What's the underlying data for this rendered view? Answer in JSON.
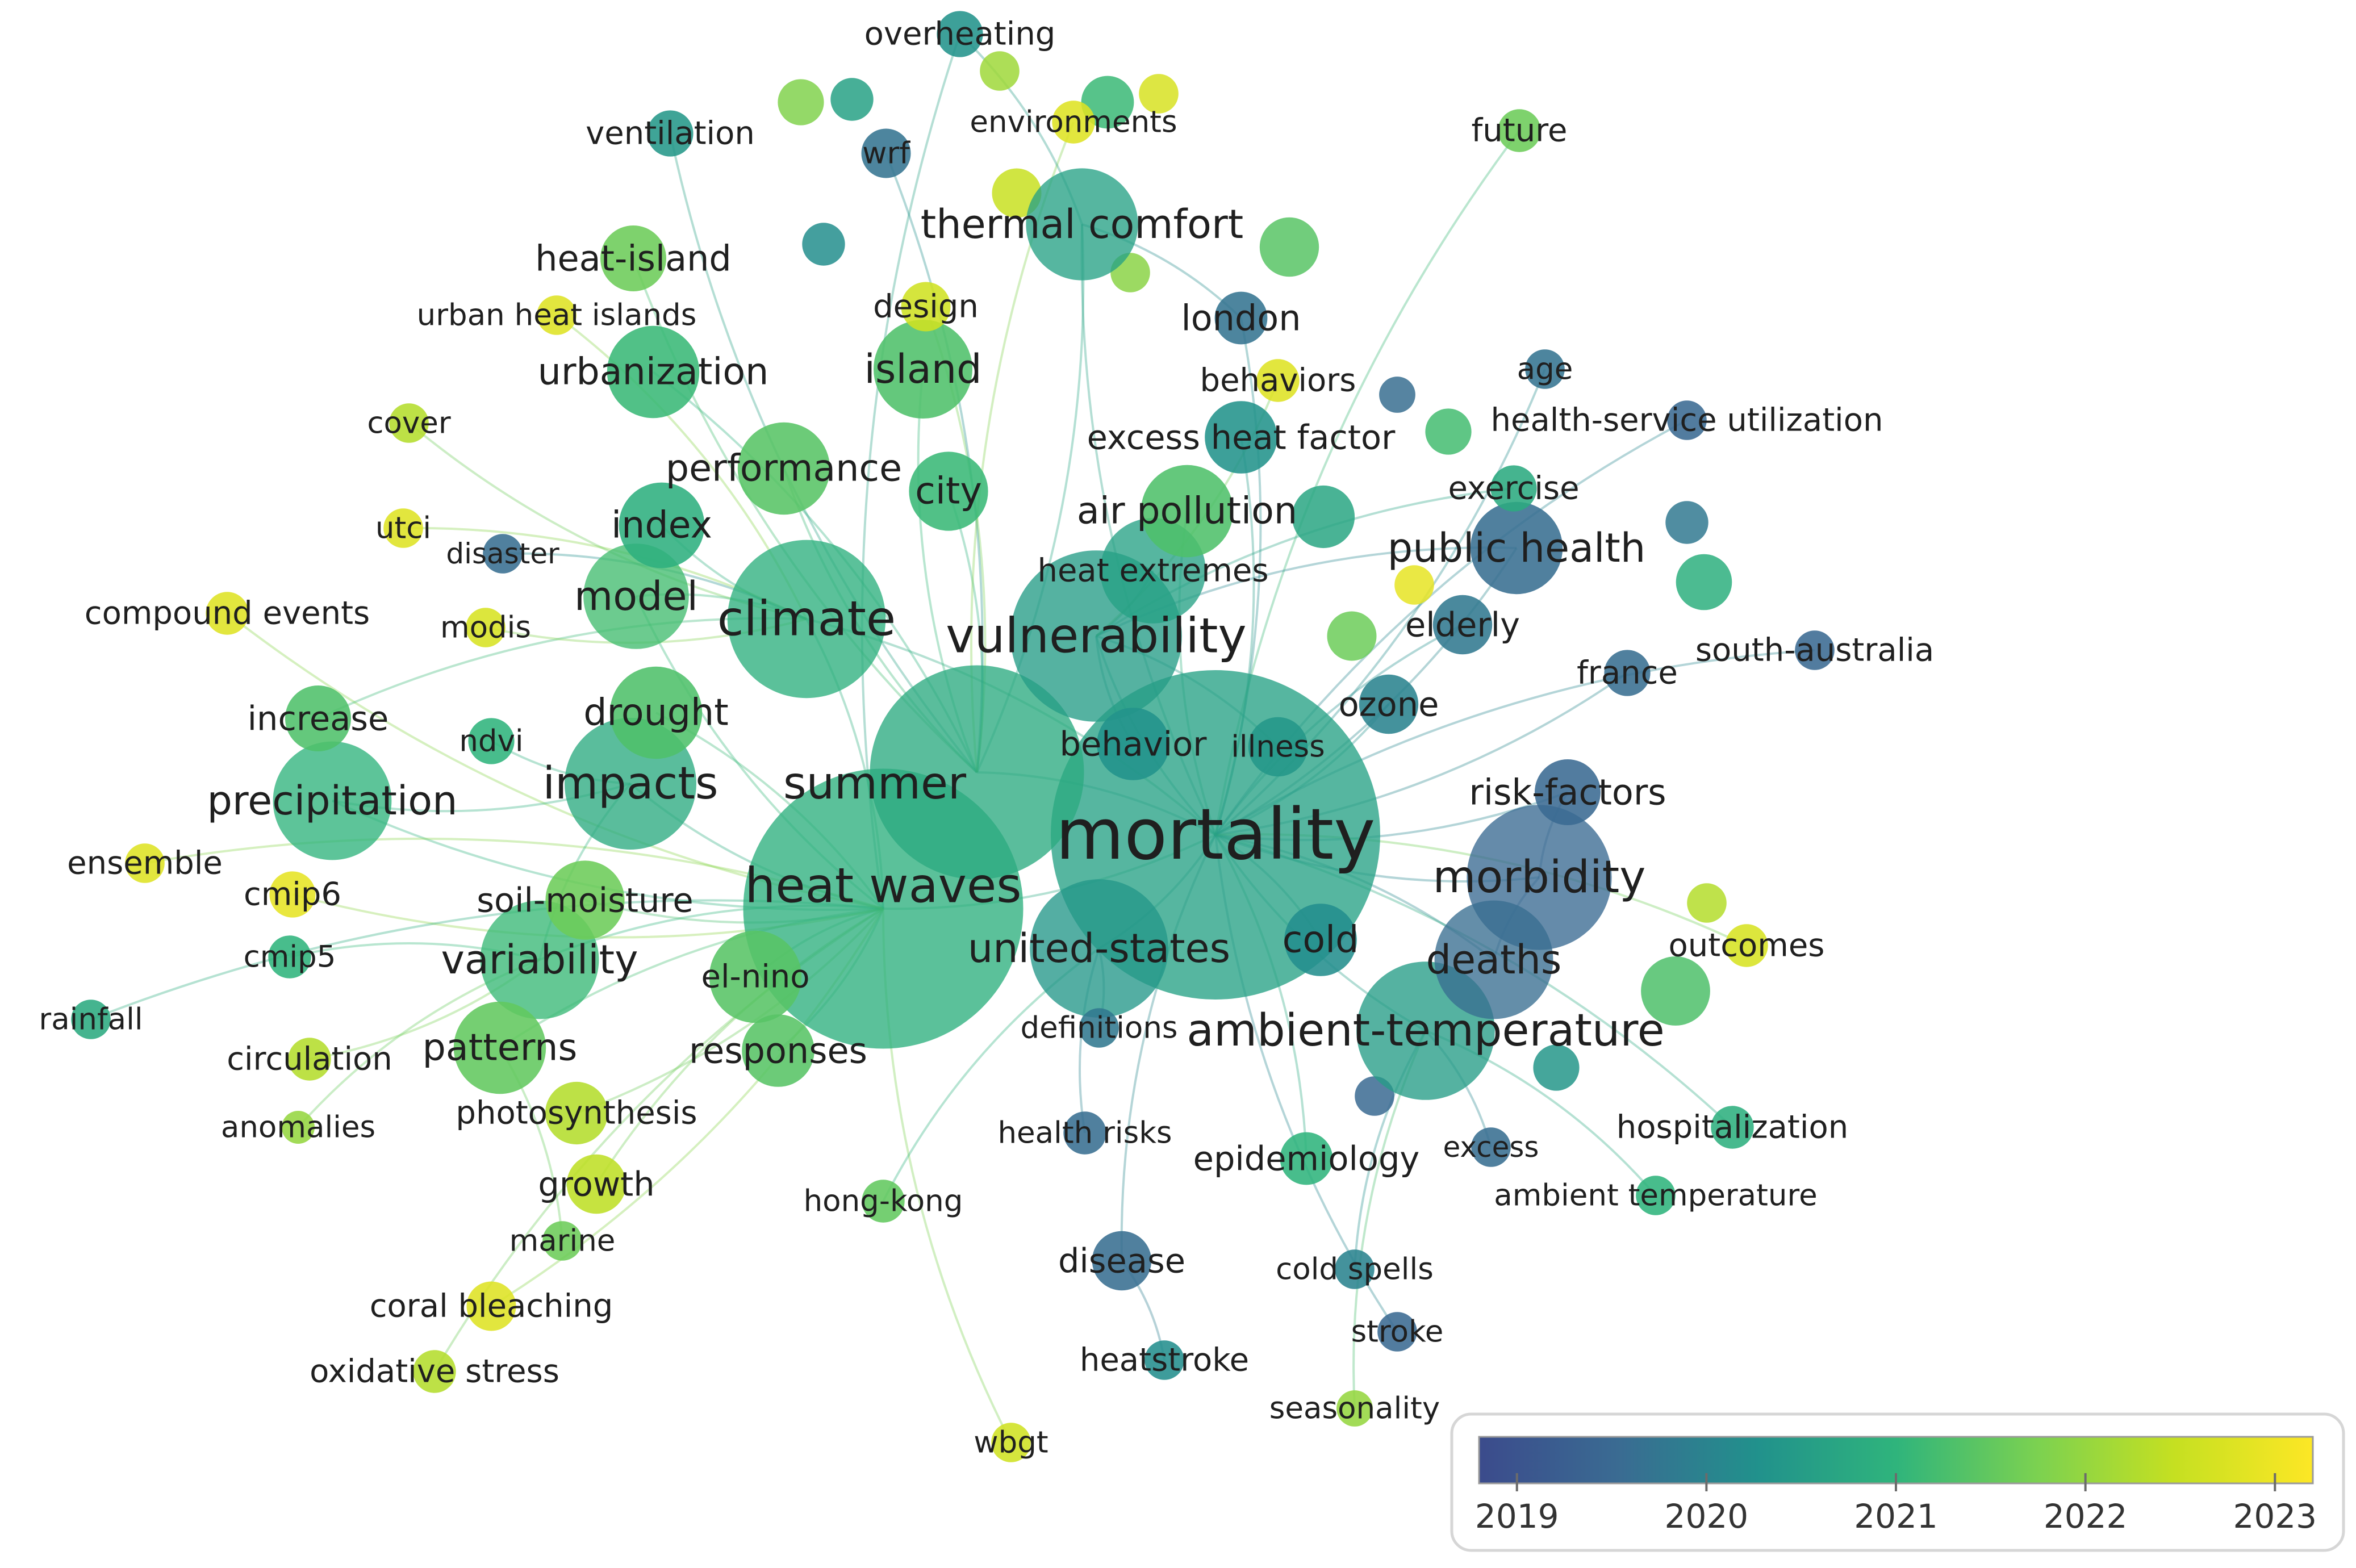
{
  "legend": {
    "ticks": [
      "2019",
      "2020",
      "2021",
      "2022",
      "2023"
    ],
    "range": [
      2018.8,
      2023.2
    ],
    "colormap": [
      "#3b4b8c",
      "#3a6b92",
      "#21918c",
      "#2fb47c",
      "#7ad151",
      "#c5e021",
      "#fde725"
    ]
  },
  "nodes": [
    {
      "id": "mortality",
      "label": "mortality",
      "weight": 10,
      "year": 2020.6,
      "label_size": 8
    },
    {
      "id": "heat-waves",
      "label": "heat waves",
      "weight": 8.5,
      "year": 2020.9,
      "label_size": 5.5
    },
    {
      "id": "summer",
      "label": "summer",
      "weight": 6.5,
      "year": 2020.8,
      "label_size": 5
    },
    {
      "id": "climate",
      "label": "climate",
      "weight": 4.8,
      "year": 2020.9,
      "label_size": 5.5
    },
    {
      "id": "vulnerability",
      "label": "vulnerability",
      "weight": 5.2,
      "year": 2020.5,
      "label_size": 5.5
    },
    {
      "id": "impacts",
      "label": "impacts",
      "weight": 4,
      "year": 2020.8,
      "label_size": 5
    },
    {
      "id": "precipitation",
      "label": "precipitation",
      "weight": 3.6,
      "year": 2021.0,
      "label_size": 4.5
    },
    {
      "id": "variability",
      "label": "variability",
      "weight": 3.6,
      "year": 2021.1,
      "label_size": 4.5
    },
    {
      "id": "model",
      "label": "model",
      "weight": 3.2,
      "year": 2021.2,
      "label_size": 4.5
    },
    {
      "id": "drought",
      "label": "drought",
      "weight": 2.8,
      "year": 2021.3,
      "label_size": 4.2
    },
    {
      "id": "thermal-comfort",
      "label": "thermal comfort",
      "weight": 3.4,
      "year": 2020.6,
      "label_size": 4.5
    },
    {
      "id": "island",
      "label": "island",
      "weight": 3,
      "year": 2021.3,
      "label_size": 4.5
    },
    {
      "id": "urbanization",
      "label": "urbanization",
      "weight": 2.8,
      "year": 2021.1,
      "label_size": 4.2
    },
    {
      "id": "heat-island",
      "label": "heat-island",
      "weight": 2.0,
      "year": 2021.6,
      "label_size": 4
    },
    {
      "id": "performance",
      "label": "performance",
      "weight": 2.8,
      "year": 2021.4,
      "label_size": 4.2
    },
    {
      "id": "city",
      "label": "city",
      "weight": 2.4,
      "year": 2021.1,
      "label_size": 4.2
    },
    {
      "id": "index",
      "label": "index",
      "weight": 2.6,
      "year": 2020.9,
      "label_size": 4.2
    },
    {
      "id": "air-pollution",
      "label": "air pollution",
      "weight": 2.8,
      "year": 2021.3,
      "label_size": 4.2
    },
    {
      "id": "heat-extremes",
      "label": "heat extremes",
      "weight": 3.2,
      "year": 2020.6,
      "label_size": 3.6
    },
    {
      "id": "morbidity",
      "label": "morbidity",
      "weight": 4.4,
      "year": 2019.5,
      "label_size": 5
    },
    {
      "id": "deaths",
      "label": "deaths",
      "weight": 3.6,
      "year": 2019.6,
      "label_size": 4.5
    },
    {
      "id": "ambient-temperature",
      "label": "ambient-temperature",
      "weight": 4.2,
      "year": 2020.5,
      "label_size": 5
    },
    {
      "id": "united-states",
      "label": "united-states",
      "weight": 4.2,
      "year": 2020.4,
      "label_size": 4.5
    },
    {
      "id": "cold",
      "label": "cold",
      "weight": 2.2,
      "year": 2020.2,
      "label_size": 4.2
    },
    {
      "id": "public-health",
      "label": "public health",
      "weight": 2.8,
      "year": 2019.6,
      "label_size": 4.5
    },
    {
      "id": "patterns",
      "label": "patterns",
      "weight": 2.8,
      "year": 2021.5,
      "label_size": 4.2
    },
    {
      "id": "responses",
      "label": "responses",
      "weight": 2.2,
      "year": 2021.4,
      "label_size": 4
    },
    {
      "id": "el-nino",
      "label": "el-nino",
      "weight": 2.8,
      "year": 2021.4,
      "label_size": 3.6
    },
    {
      "id": "soil-moisture",
      "label": "soil-moisture",
      "weight": 2.4,
      "year": 2021.6,
      "label_size": 3.8
    },
    {
      "id": "behavior",
      "label": "behavior",
      "weight": 2.2,
      "year": 2020.3,
      "label_size": 3.8
    },
    {
      "id": "illness",
      "label": "illness",
      "weight": 1.8,
      "year": 2020.4,
      "label_size": 3.4
    },
    {
      "id": "ozone",
      "label": "ozone",
      "weight": 1.8,
      "year": 2020.0,
      "label_size": 3.8
    },
    {
      "id": "elderly",
      "label": "elderly",
      "weight": 1.8,
      "year": 2019.8,
      "label_size": 3.8
    },
    {
      "id": "risk-factors",
      "label": "risk-factors",
      "weight": 2.0,
      "year": 2019.5,
      "label_size": 4
    },
    {
      "id": "london",
      "label": "london",
      "weight": 1.6,
      "year": 2019.7,
      "label_size": 4
    },
    {
      "id": "behaviors",
      "label": "behaviors",
      "weight": 1.3,
      "year": 2022.8,
      "label_size": 3.6
    },
    {
      "id": "excess-heat-factor",
      "label": "excess heat factor",
      "weight": 2.2,
      "year": 2020.3,
      "label_size": 3.8
    },
    {
      "id": "exercise",
      "label": "exercise",
      "weight": 1.4,
      "year": 2020.8,
      "label_size": 3.6
    },
    {
      "id": "age",
      "label": "age",
      "weight": 1.2,
      "year": 2019.7,
      "label_size": 3.4
    },
    {
      "id": "health-service-utilization",
      "label": "health-service utilization",
      "weight": 1.2,
      "year": 2019.5,
      "label_size": 3.6
    },
    {
      "id": "future",
      "label": "future",
      "weight": 1.3,
      "year": 2021.6,
      "label_size": 3.6
    },
    {
      "id": "overheating",
      "label": "overheating",
      "weight": 1.4,
      "year": 2020.3,
      "label_size": 3.6
    },
    {
      "id": "ventilation",
      "label": "ventilation",
      "weight": 1.4,
      "year": 2020.4,
      "label_size": 3.6
    },
    {
      "id": "environments",
      "label": "environments",
      "weight": 1.3,
      "year": 2022.8,
      "label_size": 3.4
    },
    {
      "id": "wrf",
      "label": "wrf",
      "weight": 1.5,
      "year": 2019.7,
      "label_size": 3.4
    },
    {
      "id": "design",
      "label": "design",
      "weight": 1.5,
      "year": 2022.6,
      "label_size": 3.6
    },
    {
      "id": "urban-heat-islands",
      "label": "urban heat islands",
      "weight": 1.2,
      "year": 2022.8,
      "label_size": 3.4
    },
    {
      "id": "cover",
      "label": "cover",
      "weight": 1.2,
      "year": 2022.3,
      "label_size": 3.4
    },
    {
      "id": "utci",
      "label": "utci",
      "weight": 1.2,
      "year": 2022.8,
      "label_size": 3.4
    },
    {
      "id": "disaster",
      "label": "disaster",
      "weight": 1.2,
      "year": 2019.6,
      "label_size": 3.2
    },
    {
      "id": "compound-events",
      "label": "compound events",
      "weight": 1.3,
      "year": 2022.8,
      "label_size": 3.6
    },
    {
      "id": "modis",
      "label": "modis",
      "weight": 1.2,
      "year": 2022.7,
      "label_size": 3.4
    },
    {
      "id": "increase",
      "label": "increase",
      "weight": 2.0,
      "year": 2021.3,
      "label_size": 3.8
    },
    {
      "id": "ndvi",
      "label": "ndvi",
      "weight": 1.4,
      "year": 2021.0,
      "label_size": 3.4
    },
    {
      "id": "ensemble",
      "label": "ensemble",
      "weight": 1.2,
      "year": 2022.8,
      "label_size": 3.6
    },
    {
      "id": "cmip6",
      "label": "cmip6",
      "weight": 1.4,
      "year": 2022.9,
      "label_size": 3.6
    },
    {
      "id": "cmip5",
      "label": "cmip5",
      "weight": 1.3,
      "year": 2021.0,
      "label_size": 3.4
    },
    {
      "id": "rainfall",
      "label": "rainfall",
      "weight": 1.2,
      "year": 2020.8,
      "label_size": 3.4
    },
    {
      "id": "circulation",
      "label": "circulation",
      "weight": 1.3,
      "year": 2022.3,
      "label_size": 3.6
    },
    {
      "id": "anomalies",
      "label": "anomalies",
      "weight": 1.0,
      "year": 2022.0,
      "label_size": 3.4
    },
    {
      "id": "photosynthesis",
      "label": "photosynthesis",
      "weight": 1.9,
      "year": 2022.3,
      "label_size": 3.6
    },
    {
      "id": "growth",
      "label": "growth",
      "weight": 1.8,
      "year": 2022.4,
      "label_size": 3.8
    },
    {
      "id": "marine",
      "label": "marine",
      "weight": 1.2,
      "year": 2021.6,
      "label_size": 3.4
    },
    {
      "id": "coral-bleaching",
      "label": "coral bleaching",
      "weight": 1.5,
      "year": 2022.8,
      "label_size": 3.6
    },
    {
      "id": "oxidative-stress",
      "label": "oxidative stress",
      "weight": 1.3,
      "year": 2022.3,
      "label_size": 3.6
    },
    {
      "id": "wbgt",
      "label": "wbgt",
      "weight": 1.2,
      "year": 2022.6,
      "label_size": 3.4
    },
    {
      "id": "hong-kong",
      "label": "hong-kong",
      "weight": 1.3,
      "year": 2021.5,
      "label_size": 3.4
    },
    {
      "id": "health-risks",
      "label": "health risks",
      "weight": 1.3,
      "year": 2019.6,
      "label_size": 3.4
    },
    {
      "id": "definitions",
      "label": "definitions",
      "weight": 1.2,
      "year": 2019.8,
      "label_size": 3.4
    },
    {
      "id": "epidemiology",
      "label": "epidemiology",
      "weight": 1.6,
      "year": 2021.0,
      "label_size": 3.8
    },
    {
      "id": "disease",
      "label": "disease",
      "weight": 1.8,
      "year": 2019.6,
      "label_size": 3.8
    },
    {
      "id": "heatstroke",
      "label": "heatstroke",
      "weight": 1.2,
      "year": 2020.2,
      "label_size": 3.6
    },
    {
      "id": "excess",
      "label": "excess",
      "weight": 1.2,
      "year": 2019.6,
      "label_size": 3.2
    },
    {
      "id": "cold-spells",
      "label": "cold spells",
      "weight": 1.2,
      "year": 2020.0,
      "label_size": 3.4
    },
    {
      "id": "stroke",
      "label": "stroke",
      "weight": 1.2,
      "year": 2019.5,
      "label_size": 3.4
    },
    {
      "id": "seasonality",
      "label": "seasonality",
      "weight": 1.1,
      "year": 2022.0,
      "label_size": 3.4
    },
    {
      "id": "hospitalization",
      "label": "hospitalization",
      "weight": 1.3,
      "year": 2020.9,
      "label_size": 3.6
    },
    {
      "id": "ambient-temperature-2",
      "label": "ambient temperature",
      "weight": 1.2,
      "year": 2021.0,
      "label_size": 3.4
    },
    {
      "id": "outcomes",
      "label": "outcomes",
      "weight": 1.3,
      "year": 2022.7,
      "label_size": 3.6
    },
    {
      "id": "france",
      "label": "france",
      "weight": 1.4,
      "year": 2019.6,
      "label_size": 3.6
    },
    {
      "id": "south-australia",
      "label": "south-australia",
      "weight": 1.2,
      "year": 2019.5,
      "label_size": 3.6
    }
  ],
  "unlabeled_nodes": [
    {
      "weight": 1.4,
      "year": 2021.8
    },
    {
      "weight": 1.3,
      "year": 2020.6
    },
    {
      "weight": 1.2,
      "year": 2022.1
    },
    {
      "weight": 1.6,
      "year": 2021.1
    },
    {
      "weight": 1.2,
      "year": 2022.7
    },
    {
      "weight": 1.8,
      "year": 2021.4
    },
    {
      "weight": 1.3,
      "year": 2020.2
    },
    {
      "weight": 1.5,
      "year": 2022.5
    },
    {
      "weight": 1.2,
      "year": 2021.9
    },
    {
      "weight": 1.1,
      "year": 2019.6
    },
    {
      "weight": 1.4,
      "year": 2021.2
    },
    {
      "weight": 1.9,
      "year": 2020.7
    },
    {
      "weight": 1.2,
      "year": 2022.9
    },
    {
      "weight": 1.5,
      "year": 2021.6
    },
    {
      "weight": 1.3,
      "year": 2019.8
    },
    {
      "weight": 1.7,
      "year": 2020.9
    },
    {
      "weight": 1.2,
      "year": 2022.3
    },
    {
      "weight": 2.1,
      "year": 2021.3
    },
    {
      "weight": 1.2,
      "year": 2019.5
    },
    {
      "weight": 1.4,
      "year": 2020.4
    }
  ],
  "edges": [
    [
      "mortality",
      "heat-waves"
    ],
    [
      "mortality",
      "summer"
    ],
    [
      "mortality",
      "vulnerability"
    ],
    [
      "mortality",
      "morbidity"
    ],
    [
      "mortality",
      "deaths"
    ],
    [
      "mortality",
      "ambient-temperature"
    ],
    [
      "mortality",
      "united-states"
    ],
    [
      "mortality",
      "public-health"
    ],
    [
      "mortality",
      "cold"
    ],
    [
      "mortality",
      "risk-factors"
    ],
    [
      "mortality",
      "elderly"
    ],
    [
      "mortality",
      "ozone"
    ],
    [
      "mortality",
      "epidemiology"
    ],
    [
      "mortality",
      "disease"
    ],
    [
      "mortality",
      "hospitalization"
    ],
    [
      "mortality",
      "france"
    ],
    [
      "mortality",
      "south-australia"
    ],
    [
      "mortality",
      "london"
    ],
    [
      "mortality",
      "thermal-comfort"
    ],
    [
      "mortality",
      "climate"
    ],
    [
      "mortality",
      "air-pollution"
    ],
    [
      "mortality",
      "excess-heat-factor"
    ],
    [
      "mortality",
      "outcomes"
    ],
    [
      "mortality",
      "stroke"
    ],
    [
      "mortality",
      "health-service-utilization"
    ],
    [
      "mortality",
      "age"
    ],
    [
      "mortality",
      "future"
    ],
    [
      "heat-waves",
      "climate"
    ],
    [
      "heat-waves",
      "precipitation"
    ],
    [
      "heat-waves",
      "variability"
    ],
    [
      "heat-waves",
      "impacts"
    ],
    [
      "heat-waves",
      "drought"
    ],
    [
      "heat-waves",
      "model"
    ],
    [
      "heat-waves",
      "patterns"
    ],
    [
      "heat-waves",
      "soil-moisture"
    ],
    [
      "heat-waves",
      "el-nino"
    ],
    [
      "heat-waves",
      "responses"
    ],
    [
      "heat-waves",
      "growth"
    ],
    [
      "heat-waves",
      "coral-bleaching"
    ],
    [
      "heat-waves",
      "oxidative-stress"
    ],
    [
      "heat-waves",
      "photosynthesis"
    ],
    [
      "heat-waves",
      "wbgt"
    ],
    [
      "heat-waves",
      "cmip6"
    ],
    [
      "heat-waves",
      "rainfall"
    ],
    [
      "heat-waves",
      "compound-events"
    ],
    [
      "heat-waves",
      "ensemble"
    ],
    [
      "heat-waves",
      "overheating"
    ],
    [
      "summer",
      "thermal-comfort"
    ],
    [
      "summer",
      "island"
    ],
    [
      "summer",
      "urbanization"
    ],
    [
      "summer",
      "heat-island"
    ],
    [
      "summer",
      "city"
    ],
    [
      "summer",
      "performance"
    ],
    [
      "summer",
      "design"
    ],
    [
      "summer",
      "ventilation"
    ],
    [
      "summer",
      "wrf"
    ],
    [
      "summer",
      "environments"
    ],
    [
      "climate",
      "model"
    ],
    [
      "climate",
      "index"
    ],
    [
      "climate",
      "increase"
    ],
    [
      "climate",
      "modis"
    ],
    [
      "climate",
      "utci"
    ],
    [
      "climate",
      "cover"
    ],
    [
      "climate",
      "urban-heat-islands"
    ],
    [
      "vulnerability",
      "public-health"
    ],
    [
      "vulnerability",
      "behavior"
    ],
    [
      "vulnerability",
      "illness"
    ],
    [
      "vulnerability",
      "heat-extremes"
    ],
    [
      "vulnerability",
      "exercise"
    ],
    [
      "vulnerability",
      "behaviors"
    ],
    [
      "impacts",
      "precipitation"
    ],
    [
      "impacts",
      "variability"
    ],
    [
      "impacts",
      "ndvi"
    ],
    [
      "variability",
      "cmip5"
    ],
    [
      "variability",
      "circulation"
    ],
    [
      "variability",
      "anomalies"
    ],
    [
      "patterns",
      "marine"
    ],
    [
      "united-states",
      "health-risks"
    ],
    [
      "united-states",
      "definitions"
    ],
    [
      "united-states",
      "hong-kong"
    ],
    [
      "ambient-temperature",
      "excess"
    ],
    [
      "ambient-temperature",
      "cold-spells"
    ],
    [
      "ambient-temperature",
      "ambient-temperature-2"
    ],
    [
      "ambient-temperature",
      "seasonality"
    ],
    [
      "disease",
      "heatstroke"
    ],
    [
      "morbidity",
      "deaths"
    ],
    [
      "morbidity",
      "risk-factors"
    ],
    [
      "thermal-comfort",
      "overheating"
    ],
    [
      "thermal-comfort",
      "london"
    ],
    [
      "climate",
      "disaster"
    ]
  ]
}
